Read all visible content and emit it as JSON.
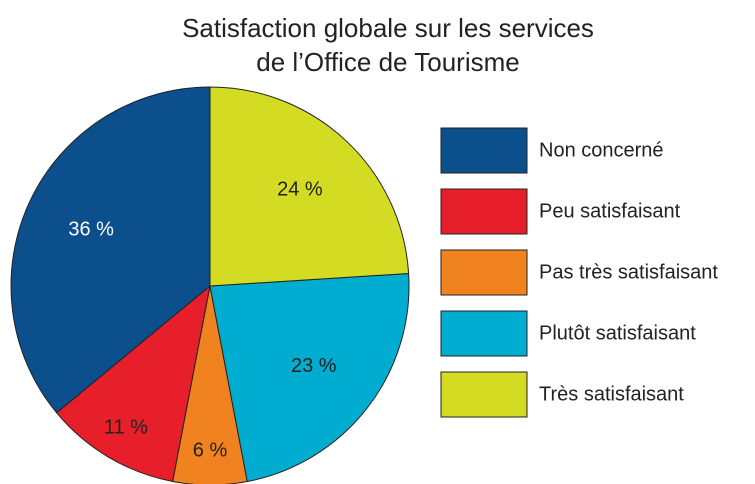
{
  "chart_data": {
    "type": "pie",
    "title": [
      "Satisfaction globale sur les services",
      "de l’Office de Tourisme"
    ],
    "categories": [
      "Non concerné",
      "Peu satisfaisant",
      "Pas très satisfaisant",
      "Plutôt satisfaisant",
      "Très satisfaisant"
    ],
    "values": [
      36,
      11,
      6,
      23,
      24
    ],
    "value_labels": [
      "36 %",
      "11 %",
      "6 %",
      "23 %",
      "24 %"
    ],
    "colors": [
      "#0b4f8d",
      "#e61f2a",
      "#f0821f",
      "#00acd0",
      "#d3dc22"
    ],
    "legend": "right"
  }
}
